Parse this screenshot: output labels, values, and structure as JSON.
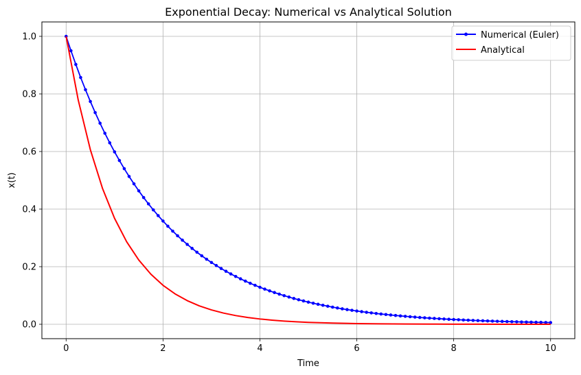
{
  "chart_data": {
    "type": "line",
    "title": "Exponential Decay: Numerical vs Analytical Solution",
    "xlabel": "Time",
    "ylabel": "x(t)",
    "xlim": [
      -0.5,
      10.5
    ],
    "ylim": [
      -0.05,
      1.05
    ],
    "xticks": [
      0,
      2,
      4,
      6,
      8,
      10
    ],
    "xtick_labels": [
      "0",
      "2",
      "4",
      "6",
      "8",
      "10"
    ],
    "yticks": [
      0.0,
      0.2,
      0.4,
      0.6,
      0.8,
      1.0
    ],
    "ytick_labels": [
      "0.0",
      "0.2",
      "0.4",
      "0.6",
      "0.8",
      "1.0"
    ],
    "grid": true,
    "legend_position": "top-right",
    "series": [
      {
        "name": "Numerical (Euler)",
        "color": "#0000ff",
        "marker": "circle",
        "x": [
          0,
          0.1,
          0.2,
          0.3,
          0.4,
          0.5,
          0.6,
          0.7,
          0.8,
          0.9,
          1,
          1.1,
          1.2,
          1.3,
          1.4,
          1.5,
          1.6,
          1.7,
          1.8,
          1.9,
          2,
          2.1,
          2.2,
          2.3,
          2.4,
          2.5,
          2.6,
          2.7,
          2.8,
          2.9,
          3,
          3.1,
          3.2,
          3.3,
          3.4,
          3.5,
          3.6,
          3.7,
          3.8,
          3.9,
          4,
          4.1,
          4.2,
          4.3,
          4.4,
          4.5,
          4.6,
          4.7,
          4.8,
          4.9,
          5,
          5.1,
          5.2,
          5.3,
          5.4,
          5.5,
          5.6,
          5.7,
          5.8,
          5.9,
          6,
          6.1,
          6.2,
          6.3,
          6.4,
          6.5,
          6.6,
          6.7,
          6.8,
          6.9,
          7,
          7.1,
          7.2,
          7.3,
          7.4,
          7.5,
          7.6,
          7.7,
          7.8,
          7.9,
          8,
          8.1,
          8.2,
          8.3,
          8.4,
          8.5,
          8.6,
          8.7,
          8.8,
          8.9,
          9,
          9.1,
          9.2,
          9.3,
          9.4,
          9.5,
          9.6,
          9.7,
          9.8,
          9.9,
          10
        ],
        "y": [
          1.0,
          0.95,
          0.9025,
          0.857,
          0.8145,
          0.7738,
          0.7351,
          0.6983,
          0.6634,
          0.6302,
          0.5987,
          0.5688,
          0.5404,
          0.5133,
          0.4877,
          0.4633,
          0.4401,
          0.4181,
          0.3972,
          0.3774,
          0.3585,
          0.3406,
          0.3235,
          0.3074,
          0.292,
          0.2774,
          0.2635,
          0.2503,
          0.2378,
          0.2259,
          0.2146,
          0.2039,
          0.1937,
          0.184,
          0.1748,
          0.1661,
          0.1578,
          0.1499,
          0.1424,
          0.1353,
          0.1285,
          0.1221,
          0.116,
          0.1102,
          0.1047,
          0.0994,
          0.0945,
          0.0897,
          0.0852,
          0.081,
          0.0769,
          0.0731,
          0.0694,
          0.066,
          0.0627,
          0.0595,
          0.0566,
          0.0537,
          0.051,
          0.0485,
          0.0461,
          0.0438,
          0.0416,
          0.0395,
          0.0375,
          0.0356,
          0.0339,
          0.0322,
          0.0306,
          0.029,
          0.0276,
          0.0262,
          0.0249,
          0.0236,
          0.0225,
          0.0213,
          0.0203,
          0.0193,
          0.0183,
          0.0174,
          0.0165,
          0.0157,
          0.0149,
          0.0142,
          0.0134,
          0.0128,
          0.0121,
          0.0115,
          0.0109,
          0.0104,
          0.0099,
          0.0094,
          0.0089,
          0.0085,
          0.008,
          0.0076,
          0.0073,
          0.0069,
          0.0066,
          0.0062,
          0.0059
        ]
      },
      {
        "name": "Analytical",
        "color": "#ff0000",
        "marker": "none",
        "x": [
          0,
          0.25,
          0.5,
          0.75,
          1,
          1.25,
          1.5,
          1.75,
          2,
          2.25,
          2.5,
          2.75,
          3,
          3.25,
          3.5,
          3.75,
          4,
          4.25,
          4.5,
          4.75,
          5,
          5.5,
          6,
          6.5,
          7,
          7.5,
          8,
          8.5,
          9,
          9.5,
          10
        ],
        "y": [
          1.0,
          0.7788,
          0.6065,
          0.4724,
          0.3679,
          0.2865,
          0.2231,
          0.1738,
          0.1353,
          0.1054,
          0.0821,
          0.0639,
          0.0498,
          0.0388,
          0.0302,
          0.0235,
          0.0183,
          0.0143,
          0.0111,
          0.0087,
          0.0067,
          0.0041,
          0.0025,
          0.0015,
          0.0009,
          0.0006,
          0.0003,
          0.0002,
          0.0001,
          0.0001,
          0.0
        ]
      }
    ]
  }
}
